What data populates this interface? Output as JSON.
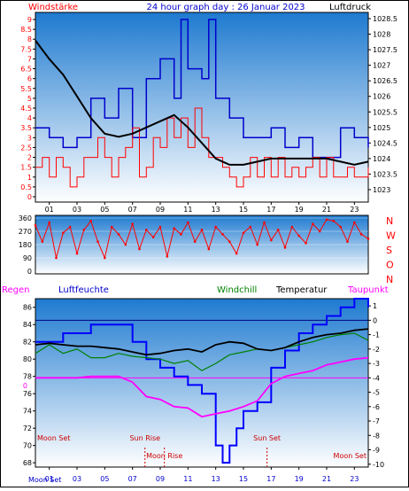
{
  "colors": {
    "wind": "#ff0000",
    "gust_alt": "#0000cc",
    "pressure": "#000000",
    "direction": "#ff0000",
    "humidity": "#0000ff",
    "windchill": "#008000",
    "temperature": "#000000",
    "dewpoint": "#ff00ff",
    "freezing_line": "#ff00ff",
    "bg_top": "#1e7ad0",
    "bg_bottom": "#ffffff"
  },
  "chart_data": [
    {
      "type": "line",
      "title": "24 hour graph day : 26 Januar 2023",
      "left_label": "Windstärke",
      "right_label": "Luftdruck",
      "x_ticks": [
        "01",
        "03",
        "05",
        "07",
        "09",
        "11",
        "13",
        "15",
        "17",
        "19",
        "21",
        "23"
      ],
      "y_left_ticks": [
        "0",
        "0.5",
        "1",
        "1.5",
        "2",
        "2.5",
        "3",
        "3.5",
        "4",
        "4.5",
        "5",
        "5.5",
        "6",
        "6.5",
        "7",
        "7.5",
        "8",
        "8.5",
        "9"
      ],
      "y_left_range": [
        0,
        9
      ],
      "y_right_ticks": [
        "1023",
        "1023.5",
        "1024",
        "1024.5",
        "1025",
        "1025.5",
        "1026",
        "1026.5",
        "1027",
        "1027.5",
        "1028",
        "1028.5"
      ],
      "y_right_range": [
        1022.6,
        1028.7
      ],
      "series": [
        {
          "role": "wind",
          "x": [
            0,
            0.5,
            1,
            1.5,
            2,
            2.5,
            3,
            3.5,
            4,
            4.5,
            5,
            5.5,
            6,
            6.5,
            7,
            7.5,
            8,
            8.5,
            9,
            9.5,
            10,
            10.5,
            11,
            11.5,
            12,
            12.5,
            13,
            13.5,
            14,
            14.5,
            15,
            15.5,
            16,
            16.5,
            17,
            17.5,
            18,
            18.5,
            19,
            19.5,
            20,
            20.5,
            21,
            21.5,
            22,
            22.5,
            23,
            23.5,
            24
          ],
          "values": [
            1.5,
            2,
            1,
            2,
            1.5,
            0.5,
            1,
            2,
            2,
            3,
            2,
            1,
            2,
            2.5,
            3.5,
            1,
            1.5,
            3,
            2.5,
            4,
            3,
            4,
            2.5,
            4.5,
            3,
            2,
            2,
            1.5,
            1,
            0.5,
            1,
            2,
            1,
            2,
            1,
            2,
            1,
            1.5,
            1,
            1.5,
            2,
            1,
            2,
            1,
            1,
            1.5,
            1,
            1,
            1.5
          ]
        },
        {
          "role": "gust",
          "x": [
            0,
            1,
            2,
            3,
            4,
            5,
            6,
            7,
            8,
            9,
            10,
            10.5,
            11,
            12,
            12.5,
            13,
            14,
            15,
            16,
            17,
            18,
            19,
            20,
            21,
            22,
            23,
            24
          ],
          "values": [
            3.5,
            3,
            2.5,
            3,
            5,
            4,
            5.5,
            3,
            6,
            7,
            5,
            9,
            6.5,
            6,
            9,
            5,
            4,
            3,
            3,
            3.5,
            2.5,
            3,
            2,
            2,
            3.5,
            3,
            2.5
          ]
        },
        {
          "role": "pressure",
          "x": [
            0,
            0.5,
            1,
            2,
            3,
            4,
            5,
            6,
            7,
            8,
            9,
            10,
            11,
            12,
            13,
            14,
            15,
            16,
            17,
            18,
            19,
            20,
            21,
            22,
            23,
            24
          ],
          "values": [
            1027.8,
            1027.5,
            1027.2,
            1026.7,
            1026.0,
            1025.3,
            1024.8,
            1024.7,
            1024.8,
            1025.0,
            1025.2,
            1025.4,
            1025.0,
            1024.5,
            1024.0,
            1023.8,
            1023.8,
            1023.9,
            1024.0,
            1024.0,
            1024.0,
            1024.0,
            1024.0,
            1023.9,
            1023.8,
            1023.9
          ]
        }
      ]
    },
    {
      "type": "scatter",
      "right_labels": [
        "N",
        "W",
        "S",
        "O",
        "N"
      ],
      "y_ticks": [
        "0",
        "90",
        "180",
        "270",
        "360"
      ],
      "y_range": [
        0,
        360
      ],
      "series": [
        {
          "role": "direction",
          "x": [
            0,
            0.5,
            1,
            1.5,
            2,
            2.5,
            3,
            3.5,
            4,
            4.5,
            5,
            5.5,
            6,
            6.5,
            7,
            7.5,
            8,
            8.5,
            9,
            9.5,
            10,
            10.5,
            11,
            11.5,
            12,
            12.5,
            13,
            13.5,
            14,
            14.5,
            15,
            15.5,
            16,
            16.5,
            17,
            17.5,
            18,
            18.5,
            19,
            19.5,
            20,
            20.5,
            21,
            21.5,
            22,
            22.5,
            23,
            23.5,
            24
          ],
          "values": [
            310,
            200,
            330,
            90,
            260,
            300,
            120,
            280,
            340,
            200,
            90,
            300,
            250,
            180,
            320,
            150,
            280,
            230,
            300,
            100,
            290,
            250,
            330,
            200,
            280,
            150,
            300,
            250,
            200,
            120,
            260,
            300,
            180,
            330,
            210,
            280,
            160,
            300,
            240,
            190,
            320,
            270,
            350,
            340,
            300,
            200,
            330,
            250,
            220
          ]
        }
      ]
    },
    {
      "type": "line",
      "legend": [
        "Regen",
        "Luftfeuchte",
        "Windchill",
        "Temperatur",
        "Taupunkt"
      ],
      "y_left_ticks": [
        "68",
        "70",
        "72",
        "74",
        "76",
        "78",
        "80",
        "82",
        "84",
        "86"
      ],
      "y_left_range": [
        67.5,
        87
      ],
      "y_right_ticks": [
        "1",
        "0",
        "-1",
        "-2",
        "-3",
        "-4",
        "-5",
        "-6",
        "-7",
        "-8",
        "-9",
        "-10"
      ],
      "y_right_range": [
        -10.2,
        1.5
      ],
      "rain_zero_label": "0",
      "x_ticks": [
        "01",
        "03",
        "05",
        "07",
        "09",
        "11",
        "13",
        "15",
        "17",
        "19",
        "21",
        "23"
      ],
      "moon_set_tick": "Moon Set",
      "events": [
        {
          "label": "Moon Set",
          "hour": 0.2
        },
        {
          "label": "Sun Rise",
          "hour": 7.9
        },
        {
          "label": "Moon Rise",
          "hour": 9.3
        },
        {
          "label": "Sun Set",
          "hour": 16.7
        },
        {
          "label": "Moon Set",
          "hour": 23.4
        }
      ],
      "series": [
        {
          "role": "humidity",
          "x": [
            0,
            1,
            2,
            3,
            4,
            5,
            6,
            7,
            8,
            9,
            10,
            11,
            12,
            13,
            13.5,
            14,
            14.5,
            15,
            15.5,
            16,
            17,
            18,
            19,
            20,
            21,
            22,
            23,
            24
          ],
          "values": [
            82,
            82,
            83,
            83,
            84,
            84,
            84,
            82,
            80,
            79,
            78,
            77,
            76,
            70,
            68,
            70,
            72,
            74,
            74,
            75,
            79,
            81,
            83,
            84,
            85,
            86,
            87,
            86
          ]
        },
        {
          "role": "windchill",
          "x": [
            0,
            1,
            2,
            3,
            4,
            5,
            6,
            7,
            8,
            9,
            10,
            11,
            12,
            13,
            14,
            15,
            16,
            17,
            18,
            19,
            20,
            21,
            22,
            23,
            24
          ],
          "values": [
            -2.3,
            -1.7,
            -2.3,
            -2.0,
            -2.6,
            -2.6,
            -2.3,
            -2.5,
            -2.6,
            -2.7,
            -3.0,
            -2.8,
            -3.5,
            -3.0,
            -2.4,
            -2.2,
            -2.0,
            -2.1,
            -1.9,
            -1.7,
            -1.5,
            -1.2,
            -1.0,
            -0.9,
            -1.4
          ]
        },
        {
          "role": "temperature",
          "x": [
            0,
            1,
            2,
            3,
            4,
            5,
            6,
            7,
            8,
            9,
            10,
            11,
            12,
            13,
            14,
            15,
            16,
            17,
            18,
            19,
            20,
            21,
            22,
            23,
            24
          ],
          "values": [
            -1.7,
            -1.6,
            -1.7,
            -1.8,
            -1.8,
            -1.9,
            -2.0,
            -2.2,
            -2.4,
            -2.3,
            -2.1,
            -2.0,
            -2.2,
            -1.7,
            -1.5,
            -1.6,
            -2.0,
            -2.1,
            -1.9,
            -1.5,
            -1.2,
            -1.0,
            -0.9,
            -0.7,
            -0.6
          ]
        },
        {
          "role": "dewpoint",
          "x": [
            0,
            1,
            2,
            3,
            4,
            5,
            6,
            7,
            8,
            9,
            10,
            11,
            12,
            13,
            14,
            15,
            16,
            17,
            18,
            19,
            20,
            21,
            22,
            23,
            24
          ],
          "values": [
            -4.0,
            -4.0,
            -4.0,
            -4.0,
            -3.9,
            -3.9,
            -3.9,
            -4.3,
            -5.3,
            -5.5,
            -6.0,
            -6.1,
            -6.7,
            -6.5,
            -6.3,
            -6.0,
            -5.6,
            -4.4,
            -3.9,
            -3.7,
            -3.5,
            -3.1,
            -2.9,
            -2.7,
            -2.6
          ]
        }
      ]
    }
  ]
}
